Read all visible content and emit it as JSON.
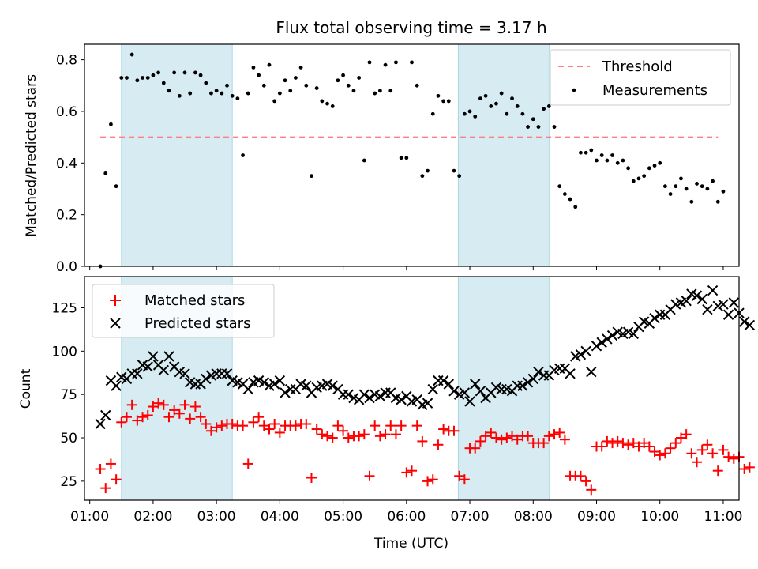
{
  "chart_data": [
    {
      "type": "scatter",
      "title": "Flux total observing time = 3.17 h",
      "xlabel": "",
      "ylabel": "Matched/Predicted stars",
      "xlim": [
        "00:55",
        "11:15"
      ],
      "ylim": [
        0,
        0.86
      ],
      "yticks": [
        0.0,
        0.2,
        0.4,
        0.6,
        0.8
      ],
      "ytick_labels": [
        "0.0",
        "0.2",
        "0.4",
        "0.6",
        "0.8"
      ],
      "shaded_intervals": [
        [
          "01:30",
          "03:15"
        ],
        [
          "06:49",
          "08:15"
        ]
      ],
      "threshold": {
        "name": "Threshold",
        "value": 0.5,
        "x_range": [
          "01:10",
          "10:55"
        ],
        "color": "#ff7f7f"
      },
      "series": [
        {
          "name": "Measurements",
          "color": "#000000",
          "points": [
            [
              "01:10",
              0.0
            ],
            [
              "01:15",
              0.36
            ],
            [
              "01:20",
              0.55
            ],
            [
              "01:25",
              0.31
            ],
            [
              "01:30",
              0.73
            ],
            [
              "01:35",
              0.73
            ],
            [
              "01:40",
              0.82
            ],
            [
              "01:45",
              0.72
            ],
            [
              "01:50",
              0.73
            ],
            [
              "01:55",
              0.73
            ],
            [
              "02:00",
              0.74
            ],
            [
              "02:05",
              0.75
            ],
            [
              "02:10",
              0.71
            ],
            [
              "02:15",
              0.68
            ],
            [
              "02:20",
              0.75
            ],
            [
              "02:25",
              0.66
            ],
            [
              "02:30",
              0.75
            ],
            [
              "02:35",
              0.67
            ],
            [
              "02:40",
              0.75
            ],
            [
              "02:45",
              0.74
            ],
            [
              "02:50",
              0.71
            ],
            [
              "02:55",
              0.67
            ],
            [
              "03:00",
              0.68
            ],
            [
              "03:05",
              0.67
            ],
            [
              "03:10",
              0.7
            ],
            [
              "03:15",
              0.66
            ],
            [
              "03:20",
              0.65
            ],
            [
              "03:25",
              0.43
            ],
            [
              "03:30",
              0.67
            ],
            [
              "03:35",
              0.77
            ],
            [
              "03:40",
              0.74
            ],
            [
              "03:45",
              0.7
            ],
            [
              "03:50",
              0.78
            ],
            [
              "03:55",
              0.64
            ],
            [
              "04:00",
              0.67
            ],
            [
              "04:05",
              0.72
            ],
            [
              "04:10",
              0.68
            ],
            [
              "04:15",
              0.73
            ],
            [
              "04:20",
              0.77
            ],
            [
              "04:25",
              0.7
            ],
            [
              "04:30",
              0.35
            ],
            [
              "04:35",
              0.69
            ],
            [
              "04:40",
              0.64
            ],
            [
              "04:45",
              0.63
            ],
            [
              "04:50",
              0.62
            ],
            [
              "04:55",
              0.72
            ],
            [
              "05:00",
              0.74
            ],
            [
              "05:05",
              0.7
            ],
            [
              "05:10",
              0.68
            ],
            [
              "05:15",
              0.73
            ],
            [
              "05:20",
              0.41
            ],
            [
              "05:25",
              0.79
            ],
            [
              "05:30",
              0.67
            ],
            [
              "05:35",
              0.68
            ],
            [
              "05:40",
              0.78
            ],
            [
              "05:45",
              0.68
            ],
            [
              "05:50",
              0.79
            ],
            [
              "05:55",
              0.42
            ],
            [
              "06:00",
              0.42
            ],
            [
              "06:05",
              0.79
            ],
            [
              "06:10",
              0.7
            ],
            [
              "06:15",
              0.35
            ],
            [
              "06:20",
              0.37
            ],
            [
              "06:25",
              0.59
            ],
            [
              "06:30",
              0.66
            ],
            [
              "06:35",
              0.64
            ],
            [
              "06:40",
              0.64
            ],
            [
              "06:45",
              0.37
            ],
            [
              "06:50",
              0.35
            ],
            [
              "06:55",
              0.59
            ],
            [
              "07:00",
              0.6
            ],
            [
              "07:05",
              0.58
            ],
            [
              "07:10",
              0.65
            ],
            [
              "07:15",
              0.66
            ],
            [
              "07:20",
              0.62
            ],
            [
              "07:25",
              0.63
            ],
            [
              "07:30",
              0.67
            ],
            [
              "07:35",
              0.59
            ],
            [
              "07:40",
              0.65
            ],
            [
              "07:45",
              0.62
            ],
            [
              "07:50",
              0.59
            ],
            [
              "07:55",
              0.54
            ],
            [
              "08:00",
              0.57
            ],
            [
              "08:05",
              0.54
            ],
            [
              "08:10",
              0.61
            ],
            [
              "08:15",
              0.62
            ],
            [
              "08:20",
              0.54
            ],
            [
              "08:25",
              0.31
            ],
            [
              "08:30",
              0.28
            ],
            [
              "08:35",
              0.26
            ],
            [
              "08:40",
              0.23
            ],
            [
              "08:45",
              0.44
            ],
            [
              "08:50",
              0.44
            ],
            [
              "08:55",
              0.45
            ],
            [
              "09:00",
              0.41
            ],
            [
              "09:05",
              0.43
            ],
            [
              "09:10",
              0.41
            ],
            [
              "09:15",
              0.43
            ],
            [
              "09:20",
              0.4
            ],
            [
              "09:25",
              0.41
            ],
            [
              "09:30",
              0.38
            ],
            [
              "09:35",
              0.33
            ],
            [
              "09:40",
              0.34
            ],
            [
              "09:45",
              0.35
            ],
            [
              "09:50",
              0.38
            ],
            [
              "09:55",
              0.39
            ],
            [
              "10:00",
              0.4
            ],
            [
              "10:05",
              0.31
            ],
            [
              "10:10",
              0.28
            ],
            [
              "10:15",
              0.31
            ],
            [
              "10:20",
              0.34
            ],
            [
              "10:25",
              0.3
            ],
            [
              "10:30",
              0.25
            ],
            [
              "10:35",
              0.32
            ],
            [
              "10:40",
              0.31
            ],
            [
              "10:45",
              0.3
            ],
            [
              "10:50",
              0.33
            ],
            [
              "10:55",
              0.25
            ],
            [
              "11:00",
              0.29
            ]
          ]
        }
      ],
      "legend": {
        "location": "top-right",
        "entries": [
          "Threshold",
          "Measurements"
        ]
      }
    },
    {
      "type": "scatter",
      "title": "",
      "xlabel": "Time (UTC)",
      "ylabel": "Count",
      "xlim": [
        "00:55",
        "11:15"
      ],
      "xticks": [
        "01:00",
        "02:00",
        "03:00",
        "04:00",
        "05:00",
        "06:00",
        "07:00",
        "08:00",
        "09:00",
        "10:00",
        "11:00"
      ],
      "ylim": [
        14,
        143
      ],
      "yticks": [
        25,
        50,
        75,
        100,
        125
      ],
      "ytick_labels": [
        "25",
        "50",
        "75",
        "100",
        "125"
      ],
      "shaded_intervals": [
        [
          "01:30",
          "03:15"
        ],
        [
          "06:49",
          "08:15"
        ]
      ],
      "series": [
        {
          "name": "Matched stars",
          "marker": "plus",
          "color": "#ff0000",
          "values": [
            32,
            21,
            35,
            26,
            59,
            62,
            69,
            60,
            62,
            63,
            68,
            70,
            69,
            62,
            66,
            64,
            69,
            61,
            68,
            62,
            58,
            54,
            56,
            57,
            58,
            58,
            57,
            57,
            35,
            59,
            62,
            57,
            55,
            58,
            53,
            57,
            57,
            57,
            58,
            58,
            27,
            55,
            52,
            51,
            50,
            57,
            54,
            50,
            51,
            51,
            52,
            28,
            57,
            51,
            52,
            57,
            52,
            57,
            30,
            31,
            57,
            48,
            25,
            26,
            46,
            55,
            54,
            54,
            28,
            26,
            44,
            44,
            48,
            51,
            53,
            50,
            49,
            50,
            51,
            49,
            51,
            51,
            47,
            47,
            47,
            51,
            52,
            53,
            49,
            28,
            28,
            28,
            25,
            20,
            45,
            45,
            48,
            47,
            48,
            47,
            46,
            47,
            45,
            47,
            45,
            42,
            40,
            41,
            44,
            47,
            50,
            52,
            41,
            36,
            43,
            46,
            41,
            31,
            43,
            39,
            38,
            39,
            32,
            33
          ]
        },
        {
          "name": "Predicted stars",
          "marker": "x",
          "color": "#000000",
          "values": [
            58,
            63,
            83,
            80,
            85,
            84,
            87,
            87,
            92,
            91,
            97,
            92,
            89,
            97,
            91,
            88,
            87,
            82,
            81,
            81,
            84,
            86,
            87,
            87,
            87,
            83,
            82,
            81,
            78,
            82,
            83,
            82,
            80,
            81,
            83,
            76,
            78,
            78,
            81,
            80,
            76,
            79,
            80,
            81,
            80,
            78,
            75,
            75,
            73,
            72,
            75,
            73,
            75,
            74,
            76,
            76,
            73,
            72,
            74,
            71,
            72,
            69,
            70,
            78,
            83,
            83,
            81,
            77,
            75,
            76,
            71,
            81,
            77,
            73,
            76,
            79,
            78,
            78,
            77,
            80,
            80,
            82,
            84,
            88,
            86,
            86,
            89,
            90,
            90,
            87,
            97,
            98,
            100,
            88,
            103,
            105,
            107,
            109,
            111,
            110,
            111,
            110,
            114,
            117,
            116,
            119,
            121,
            121,
            124,
            127,
            128,
            129,
            133,
            132,
            130,
            124,
            135,
            126,
            127,
            121,
            128,
            122,
            117,
            115
          ]
        }
      ],
      "legend": {
        "location": "top-left",
        "entries": [
          "Matched stars",
          "Predicted stars"
        ]
      }
    }
  ]
}
